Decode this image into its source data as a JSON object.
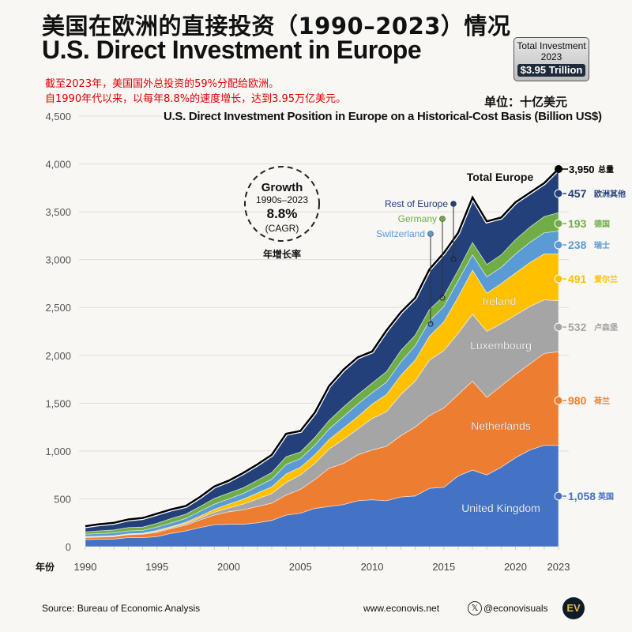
{
  "header": {
    "title_cn": "美国在欧洲的直接投资（1990–2023）情况",
    "title_en": "U.S. Direct Investment in Europe",
    "note_line1": "截至2023年，美国国外总投资的59%分配给欧洲。",
    "note_line2": "自1990年代以来，以每年8.8%的速度增长，达到3.95万亿美元。",
    "badge": {
      "label": "Total Investment",
      "year": "2023",
      "value": "$3.95 Trillion"
    },
    "unit": "单位：十亿美元"
  },
  "chart_data": {
    "type": "area",
    "stacked": true,
    "title": "U.S. Direct Investment Position in Europe on a Historical-Cost Basis (Billion US$)",
    "xlabel": "年份",
    "ylim": [
      0,
      4500
    ],
    "xlim": [
      1990,
      2023
    ],
    "grid": true,
    "yticks": [
      0,
      500,
      1000,
      1500,
      2000,
      2500,
      3000,
      3500,
      4000,
      4500
    ],
    "ytick_labels": [
      "0",
      "500",
      "1,000",
      "1,500",
      "2,000",
      "2,500",
      "3,000",
      "3,500",
      "4,000",
      "4,500"
    ],
    "xticks": [
      1990,
      1995,
      2000,
      2005,
      2010,
      2015,
      2020,
      2023
    ],
    "x": [
      1990,
      1991,
      1992,
      1993,
      1994,
      1995,
      1996,
      1997,
      1998,
      1999,
      2000,
      2001,
      2002,
      2003,
      2004,
      2005,
      2006,
      2007,
      2008,
      2009,
      2010,
      2011,
      2012,
      2013,
      2014,
      2015,
      2016,
      2017,
      2018,
      2019,
      2020,
      2021,
      2022,
      2023
    ],
    "series": [
      {
        "name": "United Kingdom",
        "label_cn": "英国",
        "end_label": "1,058",
        "color": "#4472c4",
        "values": [
          75,
          78,
          80,
          95,
          95,
          105,
          140,
          165,
          200,
          230,
          235,
          235,
          250,
          275,
          330,
          350,
          400,
          420,
          440,
          480,
          490,
          480,
          520,
          530,
          610,
          620,
          740,
          800,
          750,
          830,
          930,
          1010,
          1060,
          1058
        ]
      },
      {
        "name": "Netherlands",
        "label_cn": "荷兰",
        "end_label": "980",
        "color": "#ed7d31",
        "values": [
          20,
          22,
          25,
          30,
          35,
          45,
          50,
          60,
          80,
          100,
          130,
          150,
          170,
          180,
          210,
          250,
          300,
          400,
          430,
          480,
          520,
          570,
          640,
          720,
          760,
          830,
          850,
          930,
          810,
          850,
          870,
          900,
          960,
          980
        ]
      },
      {
        "name": "Luxembourg",
        "label_cn": "卢森堡",
        "end_label": "532",
        "color": "#a5a5a5",
        "values": [
          5,
          5,
          5,
          5,
          5,
          10,
          10,
          15,
          20,
          30,
          40,
          60,
          80,
          100,
          130,
          150,
          170,
          200,
          250,
          270,
          330,
          360,
          430,
          480,
          580,
          600,
          640,
          700,
          690,
          650,
          620,
          600,
          560,
          532
        ]
      },
      {
        "name": "Ireland",
        "label_cn": "爱尔兰",
        "end_label": "491",
        "color": "#ffc000",
        "values": [
          5,
          5,
          5,
          5,
          5,
          10,
          10,
          15,
          20,
          30,
          40,
          50,
          60,
          70,
          90,
          80,
          90,
          100,
          120,
          130,
          150,
          180,
          200,
          220,
          250,
          300,
          380,
          460,
          400,
          420,
          440,
          460,
          480,
          491
        ]
      },
      {
        "name": "Switzerland",
        "label_cn": "瑞士",
        "end_label": "238",
        "color": "#5b9bd5",
        "values": [
          25,
          28,
          30,
          30,
          30,
          35,
          40,
          40,
          50,
          55,
          55,
          60,
          70,
          80,
          100,
          90,
          100,
          110,
          120,
          130,
          120,
          130,
          140,
          150,
          160,
          160,
          170,
          160,
          170,
          170,
          200,
          210,
          220,
          238
        ]
      },
      {
        "name": "Germany",
        "label_cn": "德国",
        "end_label": "193",
        "color": "#70ad47",
        "values": [
          25,
          28,
          30,
          35,
          35,
          40,
          45,
          45,
          50,
          60,
          60,
          60,
          65,
          70,
          80,
          70,
          80,
          90,
          100,
          100,
          100,
          110,
          120,
          110,
          120,
          110,
          110,
          130,
          130,
          130,
          150,
          160,
          170,
          193
        ]
      },
      {
        "name": "Rest of Europe",
        "label_cn": "欧洲其他",
        "end_label": "457",
        "color": "#23407a",
        "values": [
          60,
          69,
          75,
          85,
          95,
          100,
          95,
          85,
          100,
          125,
          130,
          155,
          165,
          185,
          240,
          220,
          260,
          360,
          390,
          390,
          330,
          430,
          400,
          390,
          420,
          450,
          390,
          470,
          450,
          390,
          390,
          360,
          350,
          457
        ]
      }
    ],
    "total": {
      "name": "Total Europe",
      "label_cn": "总量",
      "end_label": "3,950",
      "color": "#000000"
    },
    "annotation": {
      "title": "Growth",
      "period": "1990s–2023",
      "value": "8.8%",
      "unit": "(CAGR)",
      "label_cn": "年增长率"
    }
  },
  "footer": {
    "source": "Source: Bureau of Economic Analysis",
    "website": "www.econovis.net",
    "x_icon": "𝕏",
    "handle": "@econovisuals",
    "logo": "EV"
  }
}
